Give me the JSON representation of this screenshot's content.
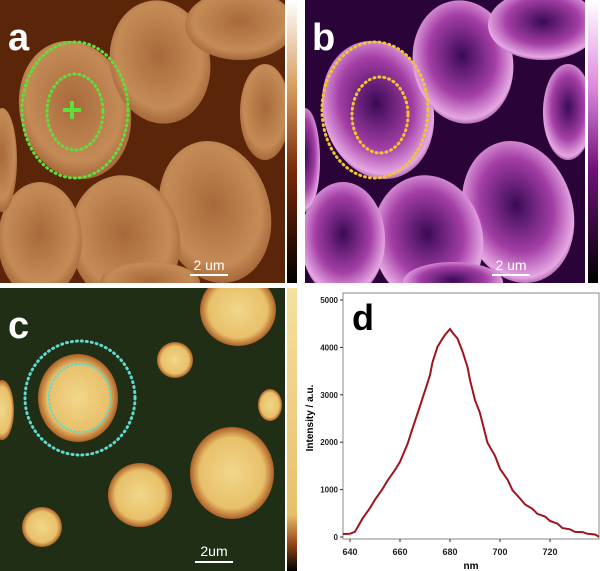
{
  "panels": {
    "a": {
      "label": "a",
      "scale_bar": "2 um"
    },
    "b": {
      "label": "b",
      "scale_bar": "2 um"
    },
    "c": {
      "label": "c",
      "scale_bar": "2um"
    },
    "d": {
      "label": "d"
    }
  },
  "colors": {
    "a_marker": "#5ee03a",
    "b_marker": "#f2c531",
    "c_marker": "#5fd8d0",
    "spectrum": "#a0141c"
  },
  "chart_data": {
    "type": "line",
    "xlabel": "nm",
    "ylabel": "Intensity / a.u.",
    "xlim": [
      637,
      740
    ],
    "ylim": [
      -100,
      5000
    ],
    "xticks": [
      640,
      660,
      680,
      700,
      720
    ],
    "yticks": [
      0,
      1000,
      2000,
      3000,
      4000,
      5000
    ],
    "grid": false,
    "series": [
      {
        "x": [
          637,
          640,
          642,
          645,
          648,
          650,
          653,
          655,
          658,
          660,
          663,
          665,
          668,
          670,
          672,
          673,
          675,
          677,
          678,
          680,
          681,
          683,
          685,
          687,
          688,
          690,
          692,
          695,
          698,
          700,
          703,
          705,
          708,
          710,
          713,
          715,
          718,
          720,
          723,
          725,
          728,
          730,
          733,
          735,
          738,
          740
        ],
        "y": [
          50,
          80,
          100,
          400,
          600,
          800,
          1000,
          1200,
          1400,
          1600,
          1950,
          2300,
          2750,
          3100,
          3400,
          3700,
          4000,
          4200,
          4250,
          4400,
          4300,
          4200,
          3900,
          3600,
          3300,
          2900,
          2600,
          2000,
          1700,
          1450,
          1200,
          1000,
          800,
          700,
          580,
          500,
          420,
          350,
          270,
          200,
          150,
          120,
          90,
          80,
          40,
          20
        ]
      }
    ]
  }
}
